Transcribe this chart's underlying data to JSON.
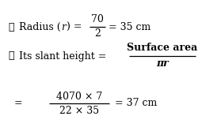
{
  "background_color": "#ffffff",
  "therefore": "∴",
  "pi_r": "πr",
  "line1_prefix": "Radius (",
  "line1_italic": "r",
  "line1_suffix": ") =",
  "line1_num": "70",
  "line1_den": "2",
  "line1_result": "= 35 cm",
  "line2_prefix": "Its slant height =",
  "line2_num": "Surface area",
  "line2_den": "πr",
  "line3_eq": "=",
  "line3_num": "4070 × 7",
  "line3_den": "22 × 35",
  "line3_result": "= 37 cm",
  "fig_width": 2.79,
  "fig_height": 1.66,
  "dpi": 100
}
